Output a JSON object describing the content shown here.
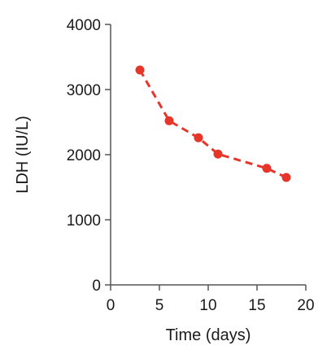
{
  "chart_data": {
    "type": "line",
    "title": "",
    "xlabel": "Time (days)",
    "ylabel": "LDH (IU/L)",
    "xlim": [
      0,
      20
    ],
    "ylim": [
      0,
      4000
    ],
    "xticks": [
      0,
      5,
      10,
      15,
      20
    ],
    "yticks": [
      0,
      1000,
      2000,
      3000,
      4000
    ],
    "grid": false,
    "line_style": "dashed",
    "color": "#e8352a",
    "series": [
      {
        "x": [
          3,
          6,
          9,
          11,
          16,
          18
        ],
        "y": [
          3300,
          2520,
          2260,
          2010,
          1790,
          1650
        ]
      }
    ]
  }
}
